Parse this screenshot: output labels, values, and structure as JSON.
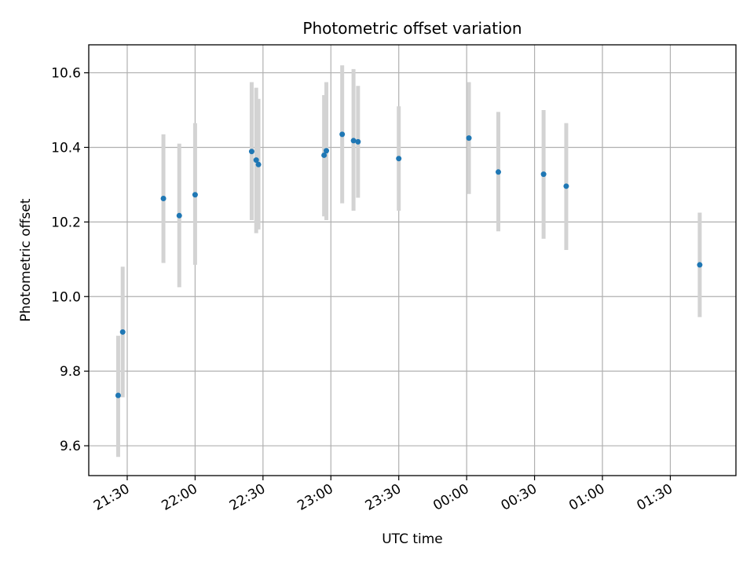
{
  "chart_data": {
    "type": "scatter",
    "title": "Photometric offset variation",
    "xlabel": "UTC time",
    "ylabel": "Photometric offset",
    "x_axis_kind": "time",
    "xlim": [
      "21:13",
      "01:59"
    ],
    "ylim": [
      9.52,
      10.675
    ],
    "y_ticks": [
      9.6,
      9.8,
      10.0,
      10.2,
      10.4,
      10.6
    ],
    "x_ticks": [
      "21:30",
      "22:00",
      "22:30",
      "23:00",
      "23:30",
      "00:00",
      "00:30",
      "01:00",
      "01:30"
    ],
    "grid": true,
    "legend": "none",
    "marker_color": "#1f77b4",
    "errorbar_color": "#d3d3d3",
    "points": [
      {
        "time": "21:26",
        "y": 9.735,
        "lo": 9.57,
        "hi": 9.895
      },
      {
        "time": "21:28",
        "y": 9.905,
        "lo": 9.73,
        "hi": 10.08
      },
      {
        "time": "21:46",
        "y": 10.263,
        "lo": 10.09,
        "hi": 10.435
      },
      {
        "time": "21:53",
        "y": 10.217,
        "lo": 10.025,
        "hi": 10.41
      },
      {
        "time": "22:00",
        "y": 10.273,
        "lo": 10.085,
        "hi": 10.465
      },
      {
        "time": "22:25",
        "y": 10.389,
        "lo": 10.205,
        "hi": 10.575
      },
      {
        "time": "22:27",
        "y": 10.366,
        "lo": 10.17,
        "hi": 10.56
      },
      {
        "time": "22:28",
        "y": 10.354,
        "lo": 10.18,
        "hi": 10.53
      },
      {
        "time": "22:57",
        "y": 10.379,
        "lo": 10.215,
        "hi": 10.54
      },
      {
        "time": "22:58",
        "y": 10.391,
        "lo": 10.205,
        "hi": 10.575
      },
      {
        "time": "23:05",
        "y": 10.435,
        "lo": 10.25,
        "hi": 10.62
      },
      {
        "time": "23:10",
        "y": 10.418,
        "lo": 10.23,
        "hi": 10.61
      },
      {
        "time": "23:12",
        "y": 10.415,
        "lo": 10.265,
        "hi": 10.565
      },
      {
        "time": "23:30",
        "y": 10.37,
        "lo": 10.23,
        "hi": 10.51
      },
      {
        "time": "00:01",
        "y": 10.425,
        "lo": 10.275,
        "hi": 10.575
      },
      {
        "time": "00:14",
        "y": 10.334,
        "lo": 10.175,
        "hi": 10.495
      },
      {
        "time": "00:34",
        "y": 10.328,
        "lo": 10.155,
        "hi": 10.5
      },
      {
        "time": "00:44",
        "y": 10.296,
        "lo": 10.125,
        "hi": 10.465
      },
      {
        "time": "01:43",
        "y": 10.085,
        "lo": 9.945,
        "hi": 10.225
      }
    ]
  }
}
